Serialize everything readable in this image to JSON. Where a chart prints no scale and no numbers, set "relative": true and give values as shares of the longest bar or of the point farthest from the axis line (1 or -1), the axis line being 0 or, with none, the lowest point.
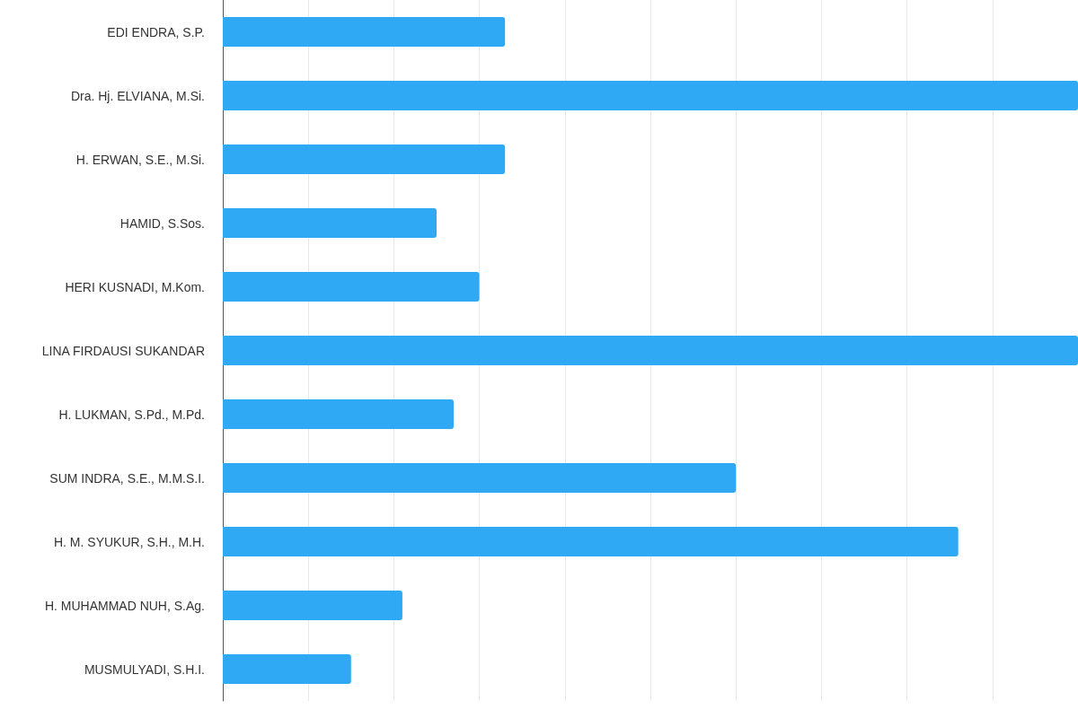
{
  "chart_data": {
    "type": "bar",
    "orientation": "horizontal",
    "relative": true,
    "categories": [
      "EDI ENDRA, S.P.",
      "Dra. Hj. ELVIANA, M.Si.",
      "H. ERWAN, S.E., M.Si.",
      "HAMID, S.Sos.",
      "HERI KUSNADI, M.Kom.",
      "LINA FIRDAUSI SUKANDAR",
      "H. LUKMAN, S.Pd., M.Pd.",
      "SUM INDRA, S.E., M.M.S.I.",
      "H. M. SYUKUR, S.H., M.H.",
      "H. MUHAMMAD NUH, S.Ag.",
      "MUSMULYADI, S.H.I."
    ],
    "values": [
      0.33,
      1,
      0.33,
      0.25,
      0.3,
      1,
      0.27,
      0.6,
      0.86,
      0.21,
      0.15
    ],
    "color": "#2fa9f4",
    "grid": "x"
  }
}
